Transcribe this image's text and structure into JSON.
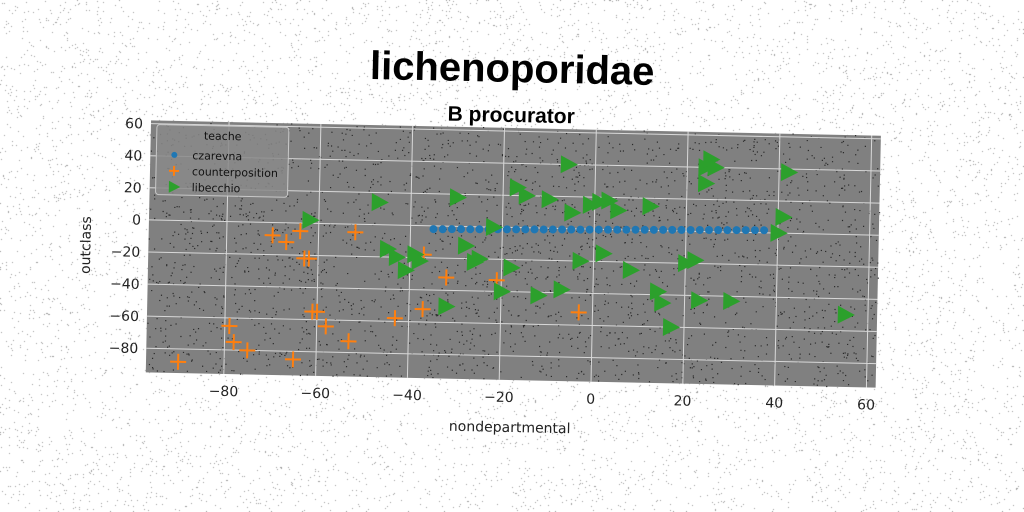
{
  "chart_data": {
    "type": "scatter",
    "title": "lichenoporidae",
    "subtitle": "B procurator",
    "xlabel": "nondepartmental",
    "ylabel": "outclass",
    "xlim": [
      -97,
      62
    ],
    "ylim": [
      -95,
      62
    ],
    "xticks": [
      -80,
      -60,
      -40,
      -20,
      0,
      20,
      40,
      60
    ],
    "yticks": [
      60,
      40,
      20,
      0,
      -20,
      -40,
      -60,
      -80
    ],
    "grid": true,
    "legend": {
      "title": "teache",
      "placement": "top-left"
    },
    "series": [
      {
        "name": "czarevna",
        "marker": "circle",
        "color": "#1f77b4",
        "x": [
          -35,
          -33,
          -31,
          -29,
          -27,
          -25,
          -23,
          -21,
          -19,
          -17,
          -15,
          -13,
          -11,
          -9,
          -7,
          -5,
          -3,
          -1,
          1,
          3,
          5,
          7,
          9,
          11,
          13,
          15,
          17,
          19,
          21,
          23,
          25,
          27,
          29,
          31,
          33,
          35,
          37
        ],
        "y": [
          -2,
          -2,
          -1.8,
          -1.7,
          -1.6,
          -1.5,
          -1.4,
          -1.3,
          -1.2,
          -1.1,
          -1,
          -0.9,
          -0.8,
          -0.7,
          -0.6,
          -0.5,
          -0.4,
          -0.3,
          -0.2,
          -0.1,
          0,
          0.1,
          0.2,
          0.3,
          0.4,
          0.5,
          0.6,
          0.7,
          0.8,
          0.9,
          1,
          1.1,
          1.2,
          1.3,
          1.4,
          1.5,
          1.6
        ]
      },
      {
        "name": "counterposition",
        "marker": "plus",
        "color": "#ff7f0e",
        "x": [
          -90,
          -79,
          -78,
          -75,
          -70,
          -67,
          -65,
          -64,
          -63,
          -62,
          -61,
          -60,
          -58,
          -53,
          -52,
          -43,
          -37,
          -37,
          -32,
          -21,
          -3
        ],
        "y": [
          -88,
          -65,
          -75,
          -80,
          -8,
          -12,
          -85,
          -5,
          -22,
          -22,
          -55,
          -55,
          -64,
          -73,
          -5,
          -58,
          -52,
          -18,
          -32,
          -33,
          -52
        ]
      },
      {
        "name": "libecchio",
        "marker": "triangle-right",
        "color": "#2ca02c",
        "x": [
          -62,
          -47,
          -45,
          -43,
          -41,
          -39,
          -38,
          -32,
          -30,
          -28,
          -26,
          -25,
          -22,
          -20,
          -18,
          -17,
          -15,
          -12,
          -10,
          -7,
          -6,
          -5,
          -3,
          -1,
          1,
          2,
          3,
          5,
          8,
          12,
          14,
          15,
          17,
          20,
          22,
          23,
          24,
          24,
          25,
          26,
          30,
          40,
          41,
          42,
          55
        ],
        "y": [
          2,
          14,
          -15,
          -20,
          -28,
          -18,
          -22,
          -50,
          18,
          -12,
          -22,
          -20,
          0,
          -40,
          -25,
          25,
          20,
          -42,
          18,
          -38,
          40,
          10,
          -20,
          15,
          17,
          -15,
          18,
          12,
          -25,
          15,
          -38,
          -45,
          -60,
          -20,
          -18,
          -43,
          30,
          40,
          45,
          40,
          -43,
          0,
          10,
          38,
          -50
        ]
      }
    ]
  }
}
